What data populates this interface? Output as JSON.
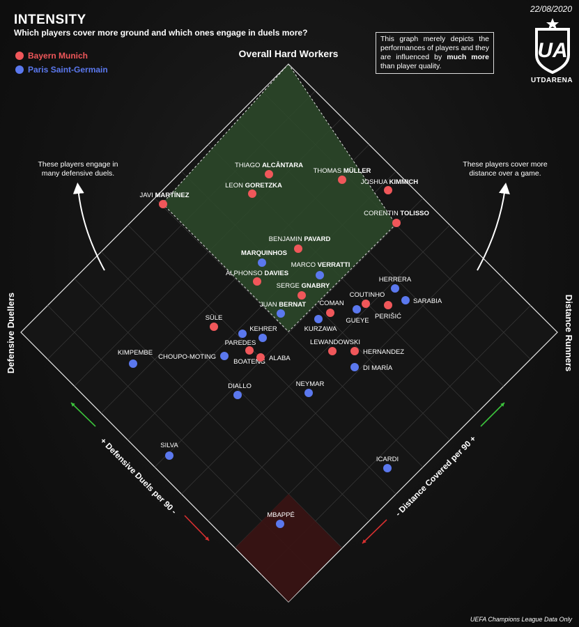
{
  "header": {
    "title": "INTENSITY",
    "subtitle": "Which players cover more ground and which ones engage in duels more?",
    "date": "22/08/2020",
    "brand": "UTDARENA",
    "logo_text": "UA"
  },
  "note": {
    "part1": "This graph merely depicts the performances of players and they are influenced by ",
    "bold": "much more",
    "part2": " than player quality."
  },
  "footer": "UEFA Champions League Data Only",
  "colors": {
    "bayern": "#f0575a",
    "psg": "#5b78ee",
    "top_zone": "#2d4a2a",
    "bottom_zone": "#3a1313"
  },
  "chart_data": {
    "type": "scatter",
    "series": [
      {
        "name": "Bayern Munich",
        "color": "#f0575a",
        "points": [
          {
            "name": "Thiago Alcântara",
            "first": "THIAGO ",
            "last": "ALCÂNTARA",
            "x": 7.3,
            "y": 2.9
          },
          {
            "name": "Thomas Müller",
            "first": "THOMAS ",
            "last": "MÜLLER",
            "x": 8.4,
            "y": 1.7
          },
          {
            "name": "Joshua Kimmich",
            "first": "JOSHUA ",
            "last": "KIMMICH",
            "x": 8.8,
            "y": 0.8
          },
          {
            "name": "Leon Goretzka",
            "first": "LEON ",
            "last": "GORETZKA",
            "x": 6.5,
            "y": 2.9
          },
          {
            "name": "Javi Martínez",
            "first": "JAVI ",
            "last": "MARTÍNEZ",
            "x": 4.6,
            "y": 4.2
          },
          {
            "name": "Corentin Tolisso",
            "first": "CORENTIN ",
            "last": "TOLISSO",
            "x": 8.4,
            "y": 0.0
          },
          {
            "name": "Benjamin Pavard",
            "first": "BENJAMIN ",
            "last": "PAVARD",
            "x": 5.9,
            "y": 1.3
          },
          {
            "name": "Alphonso Davies",
            "first": "ALPHONSO ",
            "last": "DAVIES",
            "x": 4.5,
            "y": 1.6
          },
          {
            "name": "Serge Gnabry",
            "first": "SERGE ",
            "last": "GNABRY",
            "x": 4.8,
            "y": 0.5
          },
          {
            "name": "Coutinho",
            "first": "",
            "last": "COUTINHO",
            "x": 5.0,
            "y": -1.4
          },
          {
            "name": "Perišić",
            "first": "",
            "last": "PERIŠIĆ",
            "x": 5.4,
            "y": -1.9
          },
          {
            "name": "Coman",
            "first": "",
            "last": "COMAN",
            "x": 4.0,
            "y": -0.9
          },
          {
            "name": "Süle",
            "first": "",
            "last": "SÜLE",
            "x": 1.5,
            "y": 1.7
          },
          {
            "name": "Lewandowski",
            "first": "",
            "last": "LEWANDOWSKI",
            "x": 2.8,
            "y": -1.3
          },
          {
            "name": "Hernandez",
            "first": "",
            "last": "HERNANDEZ",
            "x": 3.2,
            "y": -1.8
          },
          {
            "name": "Boateng",
            "first": "",
            "last": "BOATENG",
            "x": 1.4,
            "y": 0.8
          },
          {
            "name": "Alaba",
            "first": "",
            "last": "ALABA",
            "x": 1.4,
            "y": 0.5
          }
        ]
      },
      {
        "name": "Paris Saint-Germain",
        "color": "#5b78ee",
        "points": [
          {
            "name": "Marquinhos",
            "first": "",
            "last": "MARQUINHOS",
            "x": 5.1,
            "y": 2.1
          },
          {
            "name": "Marco Verratti",
            "first": "MARCO ",
            "last": "VERRATTI",
            "x": 5.0,
            "y": 0.3
          },
          {
            "name": "Juan Bernat",
            "first": "JUAN ",
            "last": "BERNAT",
            "x": 3.9,
            "y": 0.8
          },
          {
            "name": "Herrera",
            "first": "",
            "last": "HERRERA",
            "x": 5.6,
            "y": -2.7
          },
          {
            "name": "Sarabia",
            "first": "",
            "last": "SARABIA",
            "x": 5.4,
            "y": -3.0
          },
          {
            "name": "Gueye",
            "first": "",
            "last": "GUEYE",
            "x": 4.6,
            "y": -1.6
          },
          {
            "name": "Kurzawa",
            "first": "",
            "last": "KURZAWA",
            "x": 3.6,
            "y": -0.5
          },
          {
            "name": "Kehrer",
            "first": "",
            "last": "KEHRER",
            "x": 2.2,
            "y": 1.0
          },
          {
            "name": "Paredes",
            "first": "",
            "last": "PAREDES",
            "x": 2.0,
            "y": 1.4
          },
          {
            "name": "Kimpembe",
            "first": "",
            "last": "KIMPEMBE",
            "x": -0.2,
            "y": 4.4
          },
          {
            "name": "Choupo-Moting",
            "first": "",
            "last": "CHOUPO-MOTING",
            "x": 1.2,
            "y": 2.0
          },
          {
            "name": "Di María",
            "first": "",
            "last": "DI MARÍA",
            "x": 2.6,
            "y": -2.1
          },
          {
            "name": "Diallo",
            "first": "",
            "last": "DIALLO",
            "x": 0.3,
            "y": 1.6
          },
          {
            "name": "Neymar",
            "first": "",
            "last": "NEYMAR",
            "x": 1.5,
            "y": 0.0
          },
          {
            "name": "Silva",
            "first": "",
            "last": "SILVA",
            "x": -1.1,
            "y": 3.2
          },
          {
            "name": "Icardi",
            "first": "",
            "last": "ICARDI",
            "x": 0.6,
            "y": -3.1
          },
          {
            "name": "Mbappé",
            "first": "",
            "last": "MBAPPÉ",
            "x": -1.3,
            "y": 0.1
          }
        ]
      }
    ],
    "zone_top_label": "Overall Hard Workers",
    "left_label": "Defensive Duellers",
    "right_label": "Distance Runners",
    "left_note": [
      "These players engage in",
      "many defensive duels."
    ],
    "right_note": [
      "These players cover more",
      "distance over a game."
    ],
    "left_axis_label": "+ Defensive Duels per 90 -",
    "right_axis_label": "- Distance Covered per 90 +",
    "legend": [
      "Bayern Munich",
      "Paris Saint-Germain"
    ]
  }
}
